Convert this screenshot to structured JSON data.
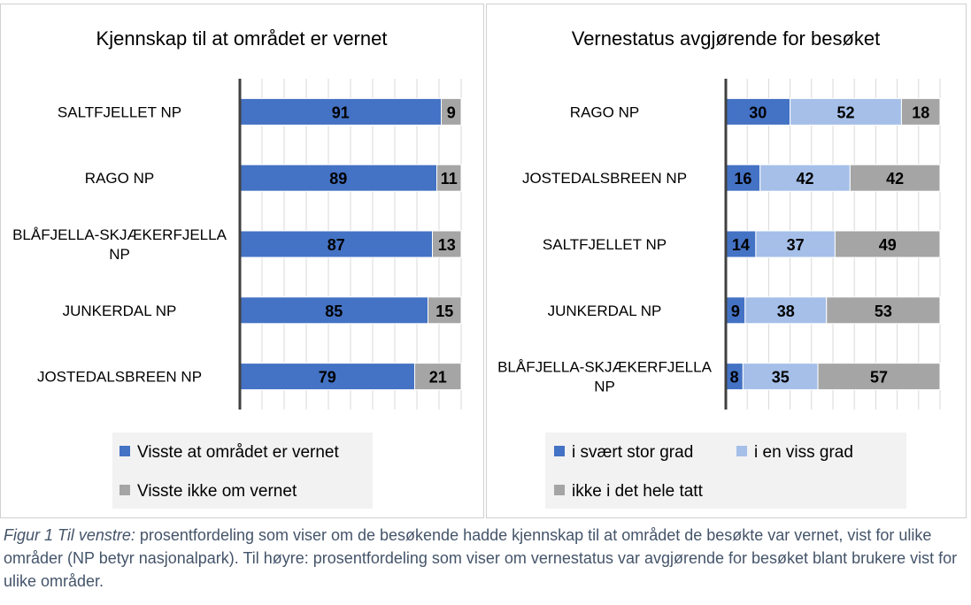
{
  "chart_data": [
    {
      "type": "bar",
      "orientation": "horizontal",
      "stacked": true,
      "title": "Kjennskap til at området er vernet",
      "categories": [
        "SALTFJELLET NP",
        "RAGO NP",
        "BLÅFJELLA-SKJÆKERFJELLA NP",
        "JUNKERDAL NP",
        "JOSTEDALSBREEN NP"
      ],
      "series": [
        {
          "name": "Visste at området er vernet",
          "color": "#4472c4",
          "values": [
            91,
            89,
            87,
            85,
            79
          ]
        },
        {
          "name": "Visste ikke om vernet",
          "color": "#a5a5a5",
          "values": [
            9,
            11,
            13,
            15,
            21
          ]
        }
      ],
      "xlim": [
        0,
        100
      ],
      "grid": true,
      "legend": "bottom"
    },
    {
      "type": "bar",
      "orientation": "horizontal",
      "stacked": true,
      "title": "Vernestatus avgjørende for besøket",
      "categories": [
        "RAGO NP",
        "JOSTEDALSBREEN NP",
        "SALTFJELLET NP",
        "JUNKERDAL NP",
        "BLÅFJELLA-SKJÆKERFJELLA NP"
      ],
      "series": [
        {
          "name": "i svært stor grad",
          "color": "#4472c4",
          "values": [
            30,
            16,
            14,
            9,
            8
          ]
        },
        {
          "name": "i en viss grad",
          "color": "#a5bfe8",
          "values": [
            52,
            42,
            37,
            38,
            35
          ]
        },
        {
          "name": "ikke i det hele tatt",
          "color": "#a5a5a5",
          "values": [
            18,
            42,
            49,
            53,
            57
          ]
        }
      ],
      "xlim": [
        0,
        100
      ],
      "grid": true,
      "legend": "bottom"
    }
  ],
  "caption": {
    "italic_part": "Figur 1 Til venstre:",
    "text": " prosentfordeling som viser om de besøkende hadde kjennskap til at området de besøkte var vernet, vist for ulike områder (NP betyr nasjonalpark). Til høyre: prosentfordeling som viser om vernestatus var avgjørende for besøket blant brukere vist for ulike områder."
  }
}
